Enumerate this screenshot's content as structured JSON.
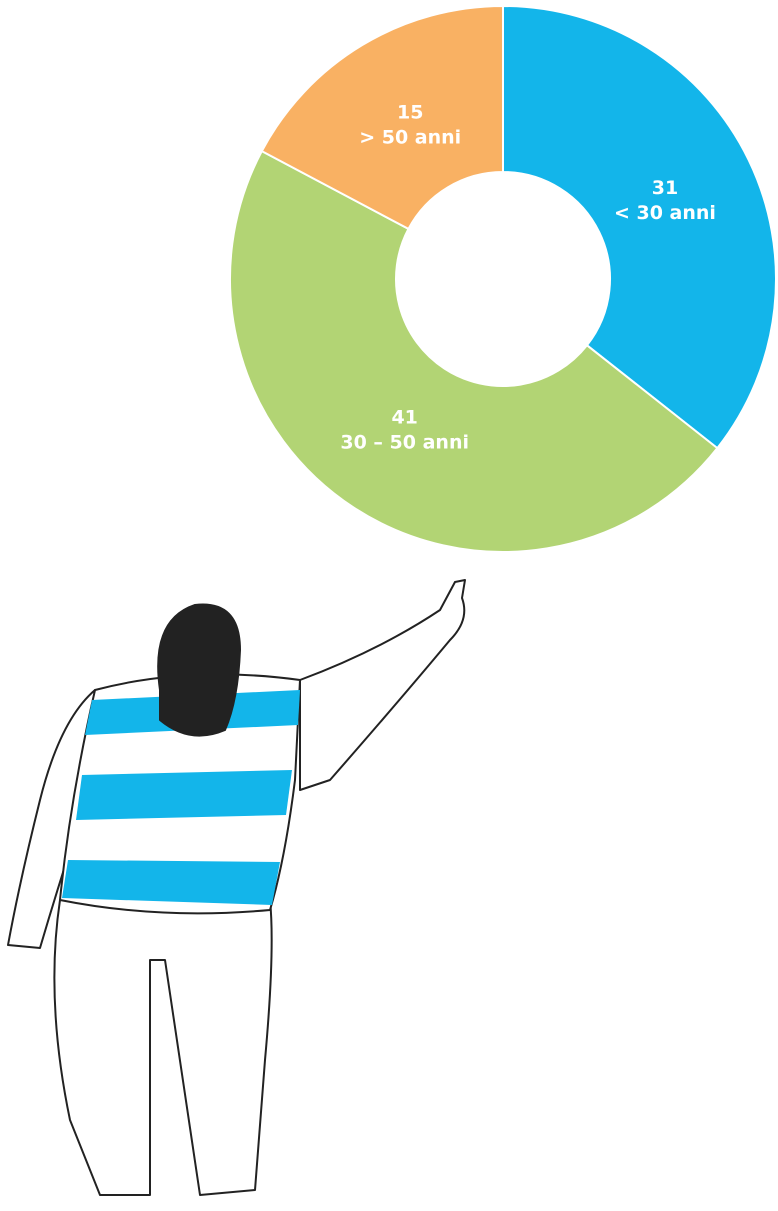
{
  "chart_data": {
    "type": "donut",
    "categories": [
      "< 30 anni",
      "30 – 50 anni",
      "> 50 anni"
    ],
    "values": [
      31,
      41,
      15
    ],
    "colors": [
      "#13b5ea",
      "#b2d474",
      "#f9b163"
    ]
  }
}
